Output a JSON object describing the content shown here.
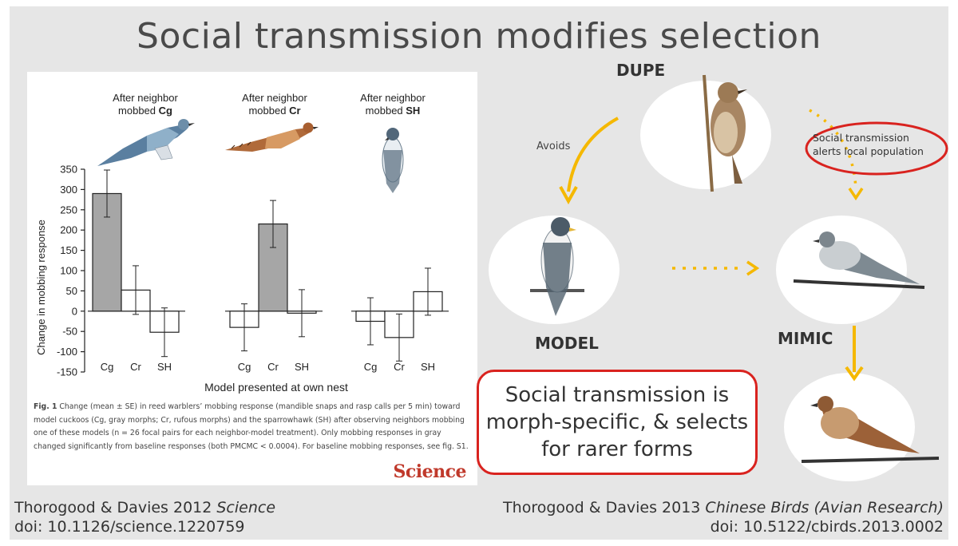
{
  "slide": {
    "title": "Social transmission modifies selection"
  },
  "figure": {
    "panel_titles": [
      {
        "line1": "After neighbor",
        "line2_prefix": "mobbed ",
        "line2_bold": "Cg"
      },
      {
        "line1": "After neighbor",
        "line2_prefix": "mobbed ",
        "line2_bold": "Cr"
      },
      {
        "line1": "After neighbor",
        "line2_prefix": "mobbed ",
        "line2_bold": "SH"
      }
    ],
    "caption_lead": "Fig. 1",
    "caption_body": " Change (mean ± SE) in reed warblers’ mobbing response (mandible snaps and rasp calls per 5 min) toward model cuckoos (Cg, gray morphs; Cr, rufous morphs) and the sparrowhawk (SH) after observing neighbors mobbing one of these models (n = 26 focal pairs for each neighbor-model treatment). Only mobbing responses in gray changed significantly from baseline responses (both PMCMC < 0.0004). For baseline mobbing responses, see fig. S1.",
    "journal_logo": "Science"
  },
  "chart_data": {
    "type": "bar",
    "ylabel": "Change in mobbing response",
    "xlabel": "Model presented at own nest",
    "ylim": [
      -150,
      350
    ],
    "yticks": [
      350,
      300,
      250,
      200,
      150,
      100,
      50,
      0,
      -50,
      -100,
      -150
    ],
    "groups": [
      {
        "name": "After neighbor mobbed Cg",
        "categories": [
          "Cg",
          "Cr",
          "SH"
        ],
        "values": [
          290,
          52,
          -52
        ],
        "errors": [
          58,
          60,
          60
        ],
        "significant": [
          true,
          false,
          false
        ]
      },
      {
        "name": "After neighbor mobbed Cr",
        "categories": [
          "Cg",
          "Cr",
          "SH"
        ],
        "values": [
          -40,
          215,
          -5
        ],
        "errors": [
          58,
          58,
          58
        ],
        "significant": [
          false,
          true,
          false
        ]
      },
      {
        "name": "After neighbor mobbed SH",
        "categories": [
          "Cg",
          "Cr",
          "SH"
        ],
        "values": [
          -25,
          -65,
          48
        ],
        "errors": [
          58,
          58,
          58
        ],
        "significant": [
          false,
          false,
          false
        ]
      }
    ],
    "colors": {
      "significant": "#a6a6a6",
      "nonsignificant": "#ffffff"
    }
  },
  "diagram": {
    "dupe_label": "DUPE",
    "model_label": "MODEL",
    "mimic_label": "MIMIC",
    "avoids_label": "Avoids",
    "social_label": "Social transmission alerts local population",
    "conclusion": "Social transmission is morph-specific, & selects for rarer forms",
    "arrow_color": "#f5b800",
    "highlight_color": "#d9231f"
  },
  "references": {
    "left_line1_prefix": "Thorogood & Davies 2012 ",
    "left_line1_italic": "Science",
    "left_line2": "doi: 10.1126/science.1220759",
    "right_line1_prefix": "Thorogood & Davies 2013 ",
    "right_line1_italic": "Chinese Birds (Avian Research)",
    "right_line2": "doi: 10.5122/cbirds.2013.0002"
  }
}
